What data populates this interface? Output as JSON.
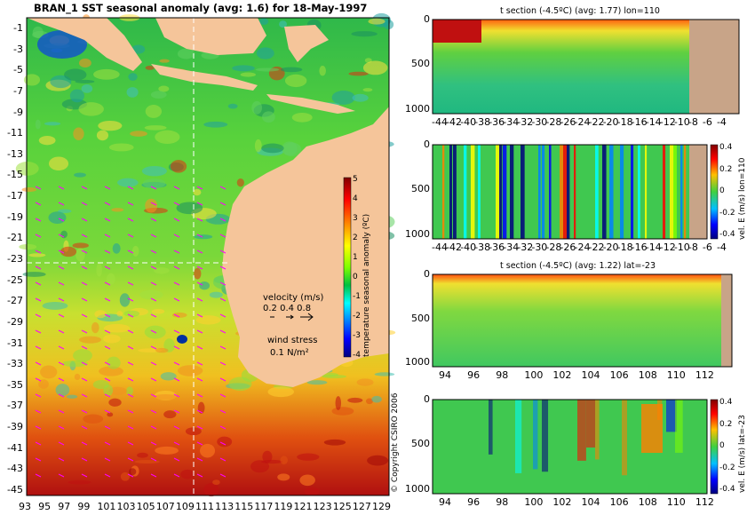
{
  "main_title": "BRAN_1  SST seasonal anomaly  (avg: 1.6) for 18-May-1997",
  "copyright": "© Copyright CSIRO 2006",
  "colors": {
    "land": "#f5c59a",
    "land_panel": "#c8a488",
    "grid_line": "#f0f0f0",
    "wind_arrow": "#ff00ff",
    "scale": [
      "#00007f",
      "#0000ff",
      "#0080ff",
      "#00ffff",
      "#00c040",
      "#80ff00",
      "#ffff00",
      "#ff8000",
      "#ff0000",
      "#800000"
    ]
  },
  "map": {
    "y_ticks": [
      "-1",
      "-3",
      "-5",
      "-7",
      "-9",
      "-11",
      "-13",
      "-15",
      "-17",
      "-19",
      "-21",
      "-23",
      "-25",
      "-27",
      "-29",
      "-31",
      "-33",
      "-35",
      "-37",
      "-39",
      "-41",
      "-43",
      "-45"
    ],
    "x_ticks": [
      "93",
      "95",
      "97",
      "99",
      "101",
      "103",
      "105",
      "107",
      "109",
      "111",
      "113",
      "115",
      "117",
      "119",
      "121",
      "123",
      "125",
      "127",
      "129"
    ],
    "colorbar": {
      "label": "temperature seasonal anomaly (ºC)",
      "ticks": [
        "5",
        "4",
        "3",
        "2",
        "1",
        "0",
        "-1",
        "-2",
        "-3",
        "-4"
      ]
    },
    "velocity_legend": {
      "title": "velocity (m/s)",
      "values": "0.2 0.4 0.8",
      "wind_title": "wind stress",
      "wind_value": "0.1 N/m²"
    }
  },
  "chart_data": [
    {
      "type": "heatmap",
      "title": "BRAN_1  SST seasonal anomaly  (avg: 1.6) for 18-May-1997",
      "xlabel": "",
      "ylabel": "",
      "x_ticks": [
        93,
        95,
        97,
        99,
        101,
        103,
        105,
        107,
        109,
        111,
        113,
        115,
        117,
        119,
        121,
        123,
        125,
        127,
        129
      ],
      "y_ticks": [
        -1,
        -3,
        -5,
        -7,
        -9,
        -11,
        -13,
        -15,
        -17,
        -19,
        -21,
        -23,
        -25,
        -27,
        -29,
        -31,
        -33,
        -35,
        -37,
        -39,
        -41,
        -43,
        -45
      ],
      "xlim": [
        93,
        130
      ],
      "ylim": [
        -45,
        1
      ],
      "colorbar_label": "temperature seasonal anomaly (ºC)",
      "color_range": [
        -4,
        5
      ]
    },
    {
      "type": "heatmap",
      "title": "t section (-4.5ºC)  (avg: 1.77) lon=110",
      "x_ticks": [
        -44,
        -42,
        -40,
        -38,
        -36,
        -34,
        -32,
        -30,
        -28,
        -26,
        -24,
        -22,
        -20,
        -18,
        -16,
        -14,
        -12,
        -10,
        -8,
        -6,
        -4
      ],
      "y_ticks": [
        0,
        500,
        1000
      ],
      "xlim": [
        -45,
        -2
      ],
      "ylim": [
        1050,
        0
      ]
    },
    {
      "type": "heatmap",
      "title": "",
      "x_ticks": [
        -44,
        -42,
        -40,
        -38,
        -36,
        -34,
        -32,
        -30,
        -28,
        -26,
        -24,
        -22,
        -20,
        -18,
        -16,
        -14,
        -12,
        -10,
        -8,
        -6,
        -4
      ],
      "y_ticks": [
        0,
        500,
        1000
      ],
      "xlim": [
        -45,
        -2
      ],
      "ylim": [
        1050,
        0
      ],
      "colorbar_label": "vel. E (m/s) lon=110",
      "colorbar_ticks": [
        "0.4",
        "0.2",
        "0",
        "-0.2",
        "-0.4"
      ],
      "color_range": [
        -0.4,
        0.4
      ]
    },
    {
      "type": "heatmap",
      "title": "t section (-4.5ºC)  (avg: 1.22) lat=-23",
      "x_ticks": [
        94,
        96,
        98,
        100,
        102,
        104,
        106,
        108,
        110,
        112
      ],
      "y_ticks": [
        0,
        500,
        1000
      ],
      "xlim": [
        93,
        114
      ],
      "ylim": [
        1050,
        0
      ]
    },
    {
      "type": "heatmap",
      "title": "",
      "x_ticks": [
        94,
        96,
        98,
        100,
        102,
        104,
        106,
        108,
        110,
        112
      ],
      "y_ticks": [
        0,
        500,
        1000
      ],
      "xlim": [
        93,
        114
      ],
      "ylim": [
        1050,
        0
      ],
      "colorbar_label": "vel. E (m/s) lat=-23",
      "colorbar_ticks": [
        "0.4",
        "0.2",
        "0",
        "-0.2",
        "-0.4"
      ],
      "color_range": [
        -0.4,
        0.4
      ]
    }
  ]
}
